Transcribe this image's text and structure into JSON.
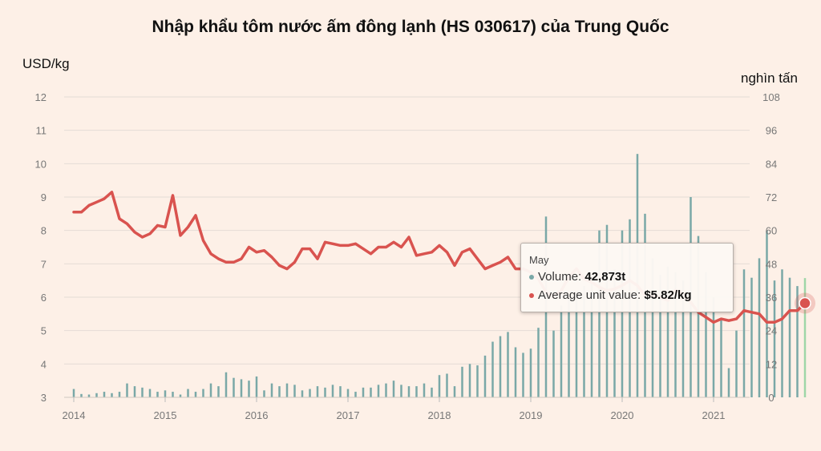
{
  "chart_data": {
    "type": "bar+line",
    "title": "Nhập khẩu tôm nước ấm đông lạnh (HS 030617) của Trung Quốc",
    "ylabel_left": "USD/kg",
    "ylabel_right": "nghìn tấn",
    "y_left_range": [
      3,
      12
    ],
    "y_left_ticks": [
      "3",
      "4",
      "5",
      "6",
      "7",
      "8",
      "9",
      "10",
      "11",
      "12"
    ],
    "y_right_range": [
      0,
      108
    ],
    "y_right_ticks": [
      "0",
      "12",
      "24",
      "36",
      "48",
      "60",
      "72",
      "84",
      "96",
      "108"
    ],
    "x_tick_labels": [
      "2014",
      "2015",
      "2016",
      "2017",
      "2018",
      "2019",
      "2020",
      "2021"
    ],
    "x_start": "2014-01",
    "grid": true,
    "series": [
      {
        "name": "Volume",
        "type": "bar",
        "axis": "right",
        "color": "#7aa8a7",
        "unit": "thousand tonnes",
        "values": [
          3.0,
          1.2,
          1.0,
          1.5,
          2.0,
          1.5,
          2.0,
          5.0,
          4.0,
          3.5,
          3.0,
          2.0,
          2.5,
          2.0,
          1.0,
          3.0,
          2.0,
          3.0,
          5.0,
          4.0,
          9.0,
          7.0,
          6.5,
          6.0,
          7.5,
          2.5,
          5.0,
          4.0,
          5.0,
          4.5,
          2.5,
          3.0,
          4.0,
          3.5,
          4.5,
          4.0,
          3.0,
          2.0,
          3.5,
          3.5,
          4.5,
          5.0,
          6.0,
          4.5,
          4.0,
          4.0,
          5.0,
          3.5,
          8.0,
          8.5,
          4.0,
          11.0,
          12.0,
          11.5,
          15.0,
          20.0,
          22.0,
          23.5,
          18.0,
          16.0,
          17.5,
          25.0,
          65.0,
          24.0,
          33.0,
          36.0,
          38.0,
          40.0,
          43.0,
          60.0,
          62.0,
          46.0,
          60.0,
          64.0,
          87.5,
          66.0,
          50.0,
          44.0,
          47.0,
          45.0,
          42.0,
          72.0,
          58.0,
          45.0,
          36.0,
          28.0,
          10.5,
          24.0,
          46.0,
          43.0,
          50.0,
          60.0,
          42.0,
          46.0,
          43.0,
          40.0,
          42.873
        ],
        "highlight_value": "42,873t"
      },
      {
        "name": "Average unit value",
        "type": "line",
        "axis": "left",
        "color": "#d9534f",
        "unit": "USD/kg",
        "values": [
          8.55,
          8.55,
          8.75,
          8.85,
          8.95,
          9.15,
          8.35,
          8.2,
          7.95,
          7.8,
          7.9,
          8.15,
          8.1,
          9.05,
          7.85,
          8.1,
          8.45,
          7.7,
          7.3,
          7.15,
          7.05,
          7.05,
          7.15,
          7.5,
          7.35,
          7.4,
          7.2,
          6.95,
          6.85,
          7.05,
          7.45,
          7.45,
          7.15,
          7.65,
          7.6,
          7.55,
          7.55,
          7.6,
          7.45,
          7.3,
          7.5,
          7.5,
          7.65,
          7.5,
          7.8,
          7.25,
          7.3,
          7.35,
          7.55,
          7.35,
          6.95,
          7.35,
          7.45,
          7.15,
          6.85,
          6.95,
          7.05,
          7.2,
          6.85,
          6.85,
          6.75,
          6.55,
          6.15,
          6.0,
          6.2,
          6.6,
          6.85,
          6.55,
          6.45,
          6.3,
          6.2,
          6.25,
          6.35,
          6.5,
          6.35,
          6.05,
          6.05,
          6.0,
          5.9,
          6.2,
          6.1,
          5.85,
          5.55,
          5.4,
          5.25,
          5.35,
          5.3,
          5.35,
          5.6,
          5.55,
          5.5,
          5.25,
          5.25,
          5.35,
          5.6,
          5.6,
          5.82
        ],
        "highlight_value": "$5.82/kg"
      }
    ],
    "tooltip": {
      "header": "May",
      "rows": [
        {
          "label": "Volume: ",
          "value": "42,873t",
          "color": "#7aa8a7"
        },
        {
          "label": "Average unit value: ",
          "value": "$5.82/kg",
          "color": "#d9534f"
        }
      ]
    }
  }
}
